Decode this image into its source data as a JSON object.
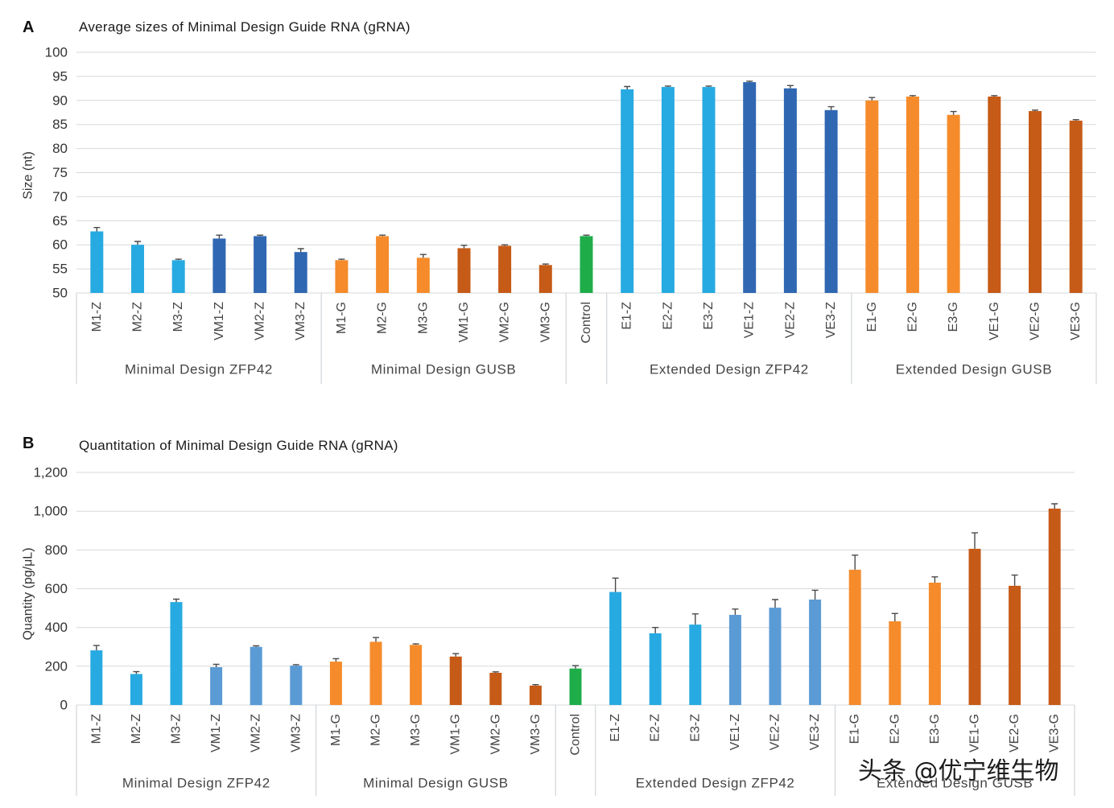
{
  "figure": {
    "watermark": "头条 @优宁维生物"
  },
  "chart_data": [
    {
      "panel": "A",
      "type": "bar",
      "title": "Average sizes of Minimal Design Guide RNA (gRNA)",
      "ylabel": "Size (nt)",
      "ylim": [
        50,
        100
      ],
      "yticks": [
        50,
        55,
        60,
        65,
        70,
        75,
        80,
        85,
        90,
        95,
        100
      ],
      "ytick_labels": [
        "50",
        "55",
        "60",
        "65",
        "70",
        "75",
        "80",
        "85",
        "90",
        "95",
        "100"
      ],
      "grid": true,
      "categories": [
        "M1-Z",
        "M2-Z",
        "M3-Z",
        "VM1-Z",
        "VM2-Z",
        "VM3-Z",
        "M1-G",
        "M2-G",
        "M3-G",
        "VM1-G",
        "VM2-G",
        "VM3-G",
        "Control",
        "E1-Z",
        "E2-Z",
        "E3-Z",
        "VE1-Z",
        "VE2-Z",
        "VE3-Z",
        "E1-G",
        "E2-G",
        "E3-G",
        "VE1-G",
        "VE2-G",
        "VE3-G"
      ],
      "groups": [
        {
          "label": "Minimal Design ZFP42",
          "count": 6
        },
        {
          "label": "Minimal Design GUSB",
          "count": 6
        },
        {
          "count": 1
        },
        {
          "label": "Extended Design ZFP42",
          "count": 6
        },
        {
          "label": "Extended Design GUSB",
          "count": 6
        }
      ],
      "values": [
        62.8,
        60,
        56.8,
        61.3,
        61.8,
        58.5,
        56.8,
        61.8,
        57.3,
        59.3,
        59.8,
        55.8,
        61.8,
        92.3,
        92.8,
        92.8,
        93.8,
        92.5,
        88,
        90,
        90.8,
        87,
        90.8,
        87.8,
        85.8
      ],
      "errors": [
        0.8,
        0.7,
        0.2,
        0.7,
        0.2,
        0.7,
        0.2,
        0.2,
        0.7,
        0.6,
        0.2,
        0.2,
        0.2,
        0.6,
        0.2,
        0.2,
        0.2,
        0.6,
        0.7,
        0.6,
        0.2,
        0.7,
        0.2,
        0.2,
        0.2
      ],
      "bar_colors": [
        "#27AAE1",
        "#27AAE1",
        "#27AAE1",
        "#2F67B2",
        "#2F67B2",
        "#2F67B2",
        "#F58B2B",
        "#F58B2B",
        "#F58B2B",
        "#C65A17",
        "#C65A17",
        "#C65A17",
        "#1FAD4A",
        "#27AAE1",
        "#27AAE1",
        "#27AAE1",
        "#2F67B2",
        "#2F67B2",
        "#2F67B2",
        "#F58B2B",
        "#F58B2B",
        "#F58B2B",
        "#C65A17",
        "#C65A17",
        "#C65A17"
      ]
    },
    {
      "panel": "B",
      "type": "bar",
      "title": "Quantitation of Minimal Design Guide RNA (gRNA)",
      "ylabel": "Quantity (pg/μL)",
      "ylim": [
        0,
        1200
      ],
      "yticks": [
        0,
        200,
        400,
        600,
        800,
        1000,
        1200
      ],
      "ytick_labels": [
        "0",
        "200",
        "400",
        "600",
        "800",
        "1,000",
        "1,200"
      ],
      "grid": true,
      "categories": [
        "M1-Z",
        "M2-Z",
        "M3-Z",
        "VM1-Z",
        "VM2-Z",
        "VM3-Z",
        "M1-G",
        "M2-G",
        "M3-G",
        "VM1-G",
        "VM2-G",
        "VM3-G",
        "Control",
        "E1-Z",
        "E2-Z",
        "E3-Z",
        "VE1-Z",
        "VE2-Z",
        "VE3-Z",
        "E1-G",
        "E2-G",
        "E3-G",
        "VE1-G",
        "VE2-G",
        "VE3-G"
      ],
      "groups": [
        {
          "label": "Minimal Design ZFP42",
          "count": 6
        },
        {
          "label": "Minimal Design GUSB",
          "count": 6
        },
        {
          "count": 1
        },
        {
          "label": "Extended Design ZFP42",
          "count": 6
        },
        {
          "label": "Extended Design GUSB",
          "count": 6
        }
      ],
      "values": [
        282,
        160,
        531,
        195,
        300,
        203,
        224,
        326,
        310,
        250,
        166,
        100,
        188,
        583,
        370,
        415,
        465,
        502,
        544,
        698,
        432,
        631,
        806,
        615,
        1013
      ],
      "errors": [
        25,
        12,
        15,
        15,
        5,
        5,
        15,
        22,
        5,
        15,
        5,
        5,
        15,
        72,
        30,
        55,
        30,
        42,
        48,
        75,
        40,
        30,
        82,
        55,
        25
      ],
      "bar_colors": [
        "#27AAE1",
        "#27AAE1",
        "#27AAE1",
        "#5B9BD5",
        "#5B9BD5",
        "#5B9BD5",
        "#F58B2B",
        "#F58B2B",
        "#F58B2B",
        "#C65A17",
        "#C65A17",
        "#C65A17",
        "#1FAD4A",
        "#27AAE1",
        "#27AAE1",
        "#27AAE1",
        "#5B9BD5",
        "#5B9BD5",
        "#5B9BD5",
        "#F58B2B",
        "#F58B2B",
        "#F58B2B",
        "#C65A17",
        "#C65A17",
        "#C65A17"
      ]
    }
  ]
}
